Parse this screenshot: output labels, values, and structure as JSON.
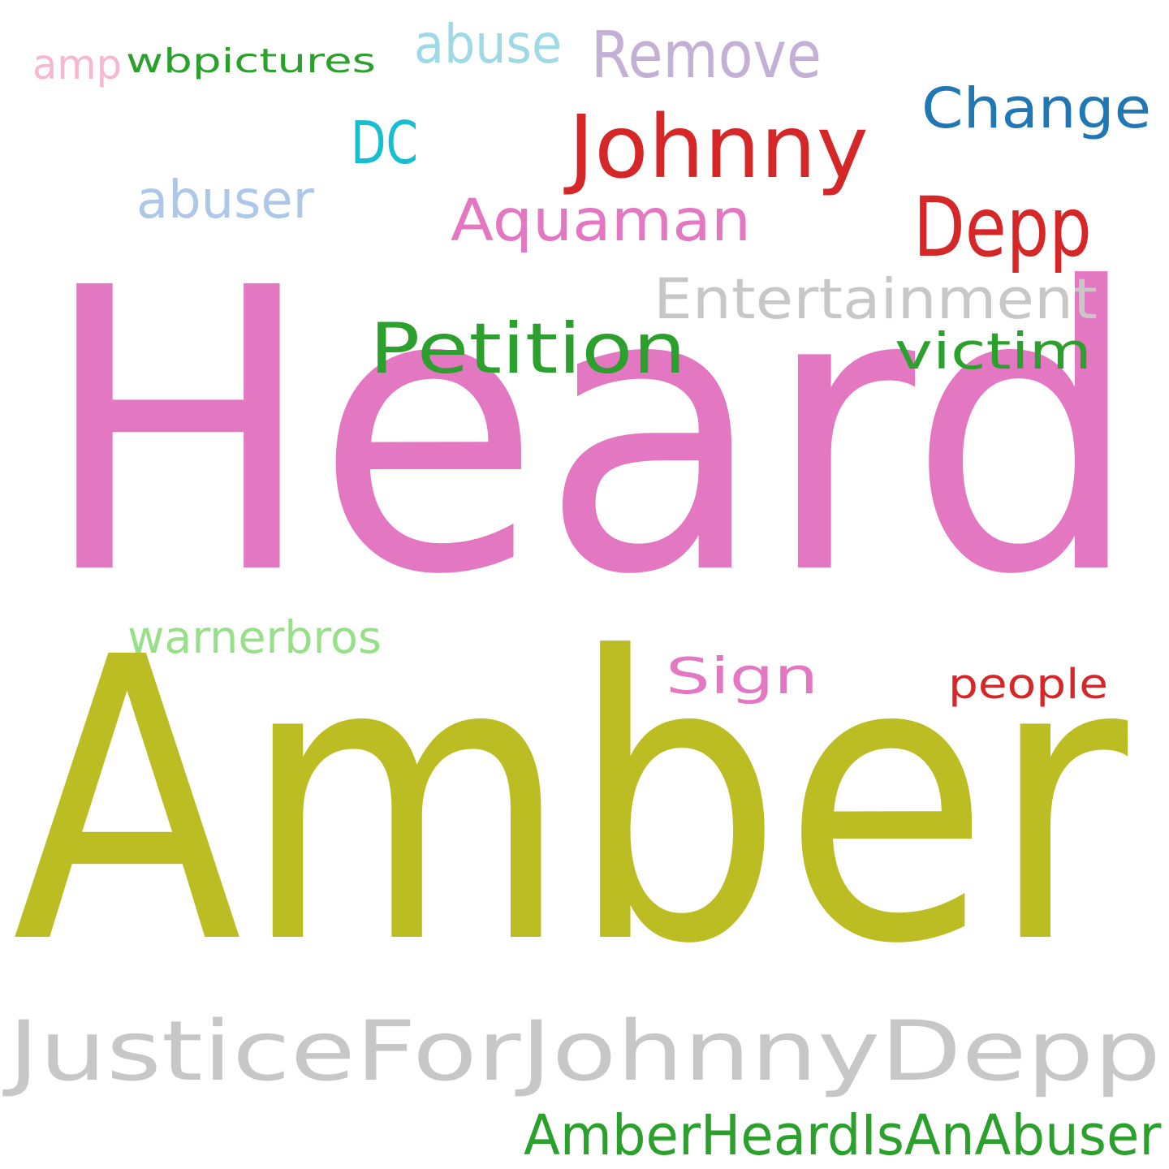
{
  "words": [
    {
      "text": "Heard",
      "color": "#e377c2"
    },
    {
      "text": "Amber",
      "color": "#bcbd22"
    },
    {
      "text": "JusticeForJohnnyDepp",
      "color": "#c7c7c7"
    },
    {
      "text": "AmberHeardIsAnAbuser",
      "color": "#2ca02c"
    },
    {
      "text": "Johnny",
      "color": "#d62728"
    },
    {
      "text": "Depp",
      "color": "#d62728"
    },
    {
      "text": "Change",
      "color": "#1f77b4"
    },
    {
      "text": "Aquaman",
      "color": "#e377c2"
    },
    {
      "text": "Entertainment",
      "color": "#c7c7c7"
    },
    {
      "text": "Petition",
      "color": "#2ca02c"
    },
    {
      "text": "victim",
      "color": "#2ca02c"
    },
    {
      "text": "Remove",
      "color": "#c5b0d5"
    },
    {
      "text": "abuse",
      "color": "#9edae5"
    },
    {
      "text": "amp",
      "color": "#f7b6d2"
    },
    {
      "text": "wbpictures",
      "color": "#2ca02c"
    },
    {
      "text": "DC",
      "color": "#17becf"
    },
    {
      "text": "abuser",
      "color": "#aec7e8"
    },
    {
      "text": "warnerbros",
      "color": "#98df8a"
    },
    {
      "text": "Sign",
      "color": "#e377c2"
    },
    {
      "text": "people",
      "color": "#d62728"
    }
  ]
}
